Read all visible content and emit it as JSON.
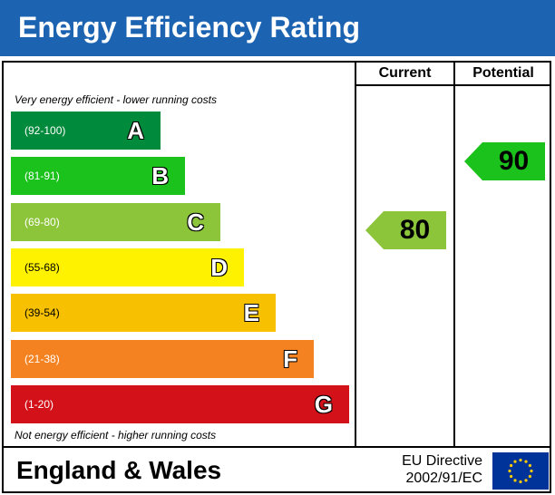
{
  "title": "Energy Efficiency Rating",
  "columns": {
    "current": "Current",
    "potential": "Potential"
  },
  "captions": {
    "top": "Very energy efficient - lower running costs",
    "bottom": "Not energy efficient - higher running costs"
  },
  "chart_data": {
    "type": "bar",
    "title": "Energy Efficiency Rating",
    "bands": [
      {
        "letter": "A",
        "range": "(92-100)",
        "color": "#008a3c"
      },
      {
        "letter": "B",
        "range": "(81-91)",
        "color": "#1cc21c"
      },
      {
        "letter": "C",
        "range": "(69-80)",
        "color": "#8cc43a"
      },
      {
        "letter": "D",
        "range": "(55-68)",
        "color": "#fff200"
      },
      {
        "letter": "E",
        "range": "(39-54)",
        "color": "#f7c000"
      },
      {
        "letter": "F",
        "range": "(21-38)",
        "color": "#f58220"
      },
      {
        "letter": "G",
        "range": "(1-20)",
        "color": "#d31118"
      }
    ],
    "current": {
      "value": 80,
      "band": "C",
      "color": "#8cc43a"
    },
    "potential": {
      "value": 90,
      "band": "B",
      "color": "#1cc21c"
    }
  },
  "footer": {
    "region": "England & Wales",
    "directive_line1": "EU Directive",
    "directive_line2": "2002/91/EC"
  },
  "colors": {
    "header": "#1c63b1",
    "eu_flag": "#003399",
    "eu_stars": "#ffcc00"
  }
}
